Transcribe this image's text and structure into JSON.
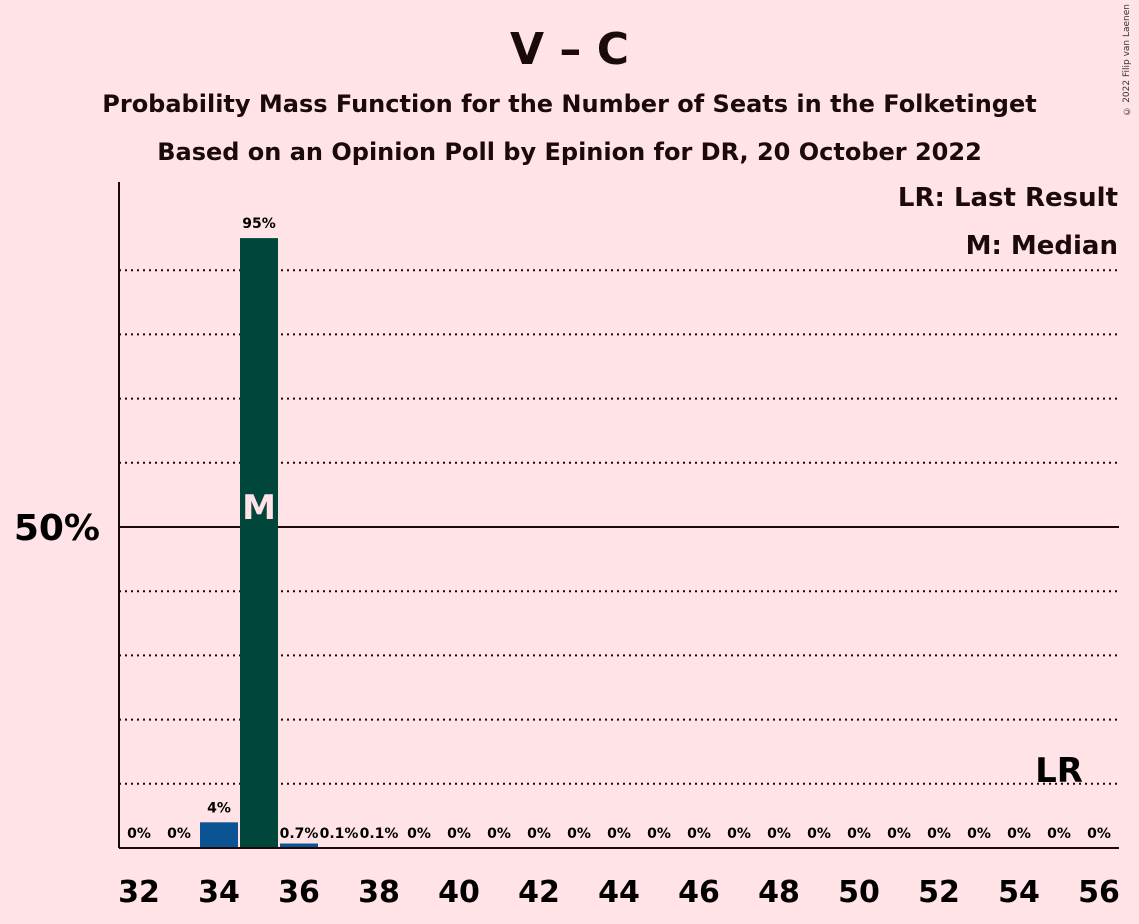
{
  "chart_data": {
    "type": "bar",
    "title": "V – C",
    "subtitle": "Probability Mass Function for the Number of Seats in the Folketinget",
    "subtitle2": "Based on an Opinion Poll by Epinion for DR, 20 October 2022",
    "copyright": "© 2022 Filip van Laenen",
    "legend": {
      "lr": "LR: Last Result",
      "m": "M: Median",
      "placement": "top-right"
    },
    "x": [
      32,
      33,
      34,
      35,
      36,
      37,
      38,
      39,
      40,
      41,
      42,
      43,
      44,
      45,
      46,
      47,
      48,
      49,
      50,
      51,
      52,
      53,
      54,
      55,
      56
    ],
    "values": [
      0,
      0,
      4,
      95,
      0.7,
      0.1,
      0.1,
      0,
      0,
      0,
      0,
      0,
      0,
      0,
      0,
      0,
      0,
      0,
      0,
      0,
      0,
      0,
      0,
      0,
      0
    ],
    "labels": [
      "0%",
      "0%",
      "4%",
      "95%",
      "0.7%",
      "0.1%",
      "0.1%",
      "0%",
      "0%",
      "0%",
      "0%",
      "0%",
      "0%",
      "0%",
      "0%",
      "0%",
      "0%",
      "0%",
      "0%",
      "0%",
      "0%",
      "0%",
      "0%",
      "0%",
      "0%"
    ],
    "x_tick_labels": [
      "32",
      "34",
      "36",
      "38",
      "40",
      "42",
      "44",
      "46",
      "48",
      "50",
      "52",
      "54",
      "56"
    ],
    "y_tick_label": "50%",
    "ylim": [
      0,
      103
    ],
    "grid": "dotted every 10%",
    "median_seat": 35,
    "median_label": "M",
    "last_result_seat": 55,
    "last_result_label": "LR",
    "colors": {
      "background": "#FFE3E6",
      "median_bar": "#00463A",
      "other_bar": "#0A5493",
      "axis": "#1a0a0a"
    }
  }
}
